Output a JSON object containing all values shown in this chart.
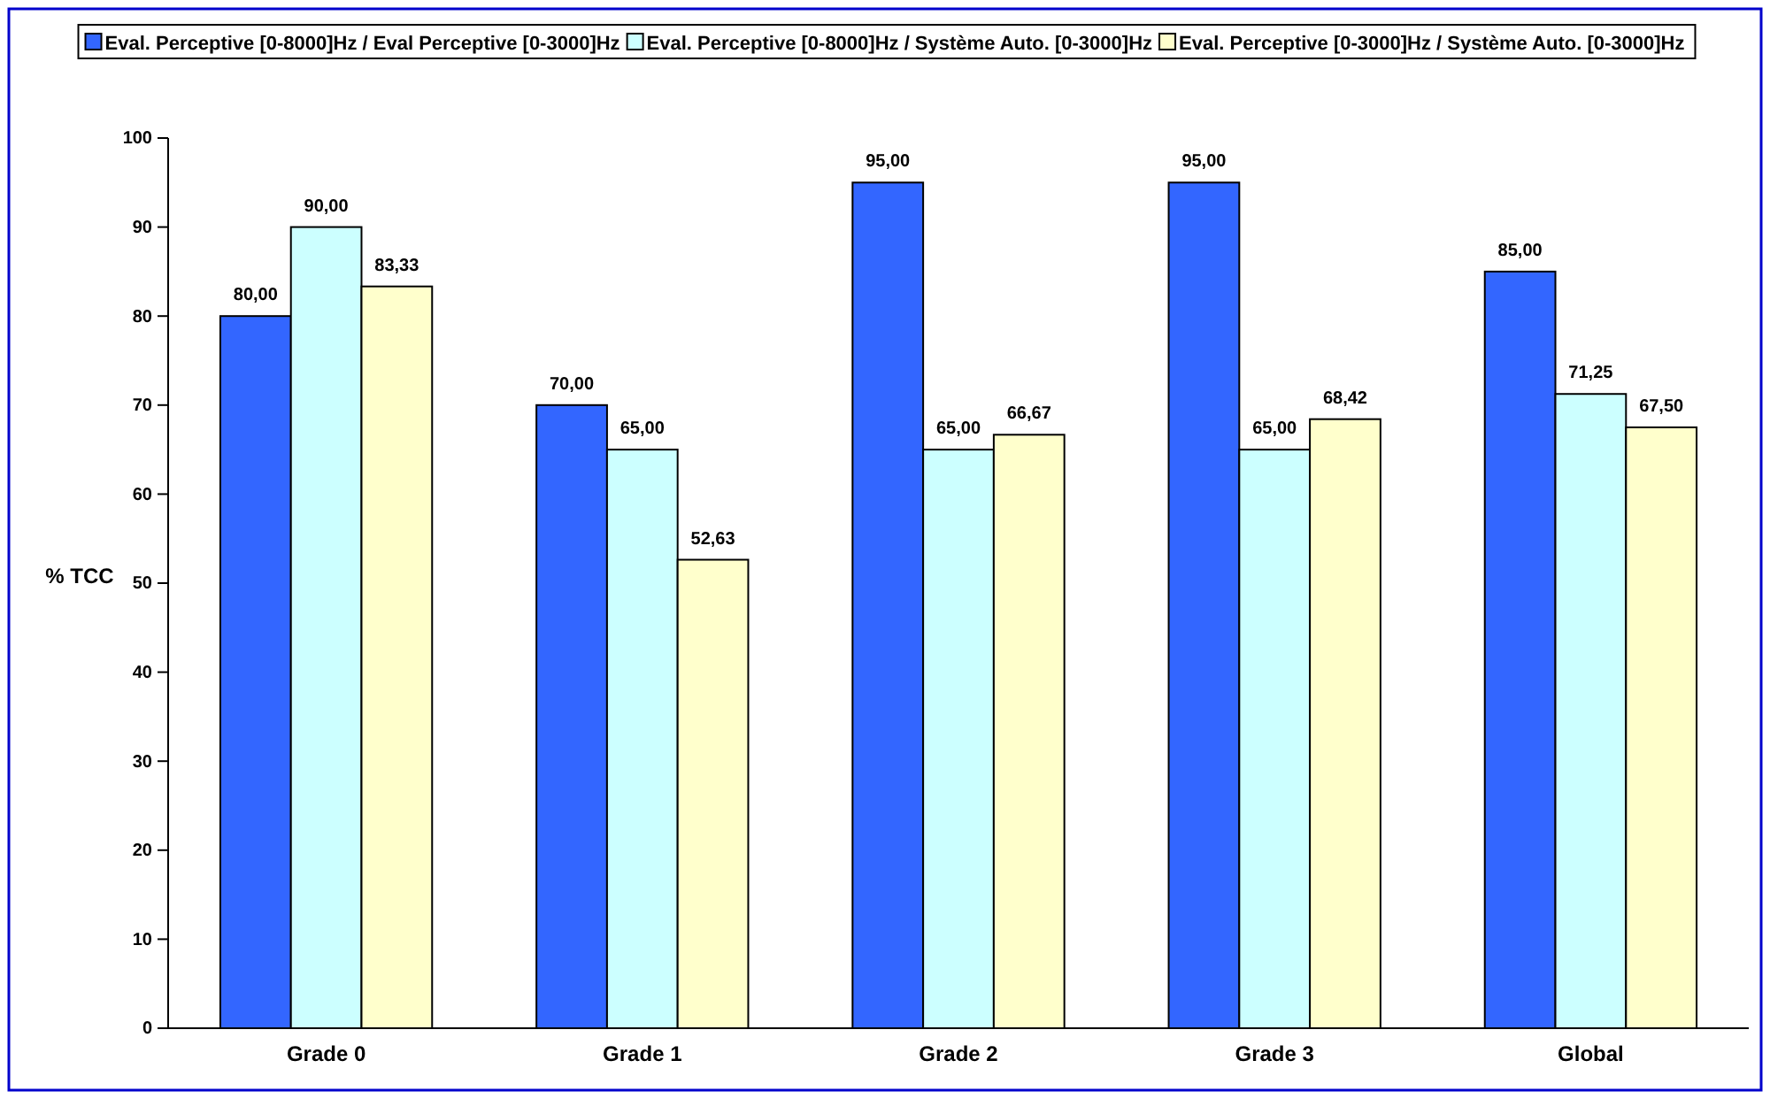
{
  "chart_data": {
    "type": "bar",
    "ylabel": "% TCC",
    "categories": [
      "Grade 0",
      "Grade 1",
      "Grade 2",
      "Grade 3",
      "Global"
    ],
    "series": [
      {
        "name": "Eval. Perceptive [0-8000]Hz / Eval Perceptive [0-3000]Hz",
        "color": "#3366ff",
        "values": [
          80,
          70,
          95,
          95,
          85
        ],
        "value_labels": [
          "80,00",
          "70,00",
          "95,00",
          "95,00",
          "85,00"
        ]
      },
      {
        "name": "Eval. Perceptive [0-8000]Hz / Système Auto. [0-3000]Hz",
        "color": "#ccffff",
        "values": [
          90,
          65,
          65,
          65,
          71.25
        ],
        "value_labels": [
          "90,00",
          "65,00",
          "65,00",
          "65,00",
          "71,25"
        ]
      },
      {
        "name": "Eval. Perceptive [0-3000]Hz / Système Auto. [0-3000]Hz",
        "color": "#ffffcc",
        "values": [
          83.33,
          52.63,
          66.67,
          68.42,
          67.5
        ],
        "value_labels": [
          "83,33",
          "52,63",
          "66,67",
          "68,42",
          "67,50"
        ]
      }
    ],
    "ylim": [
      0,
      100
    ],
    "yticks": [
      0,
      10,
      20,
      30,
      40,
      50,
      60,
      70,
      80,
      90,
      100
    ],
    "grid": false,
    "legend": "top"
  }
}
